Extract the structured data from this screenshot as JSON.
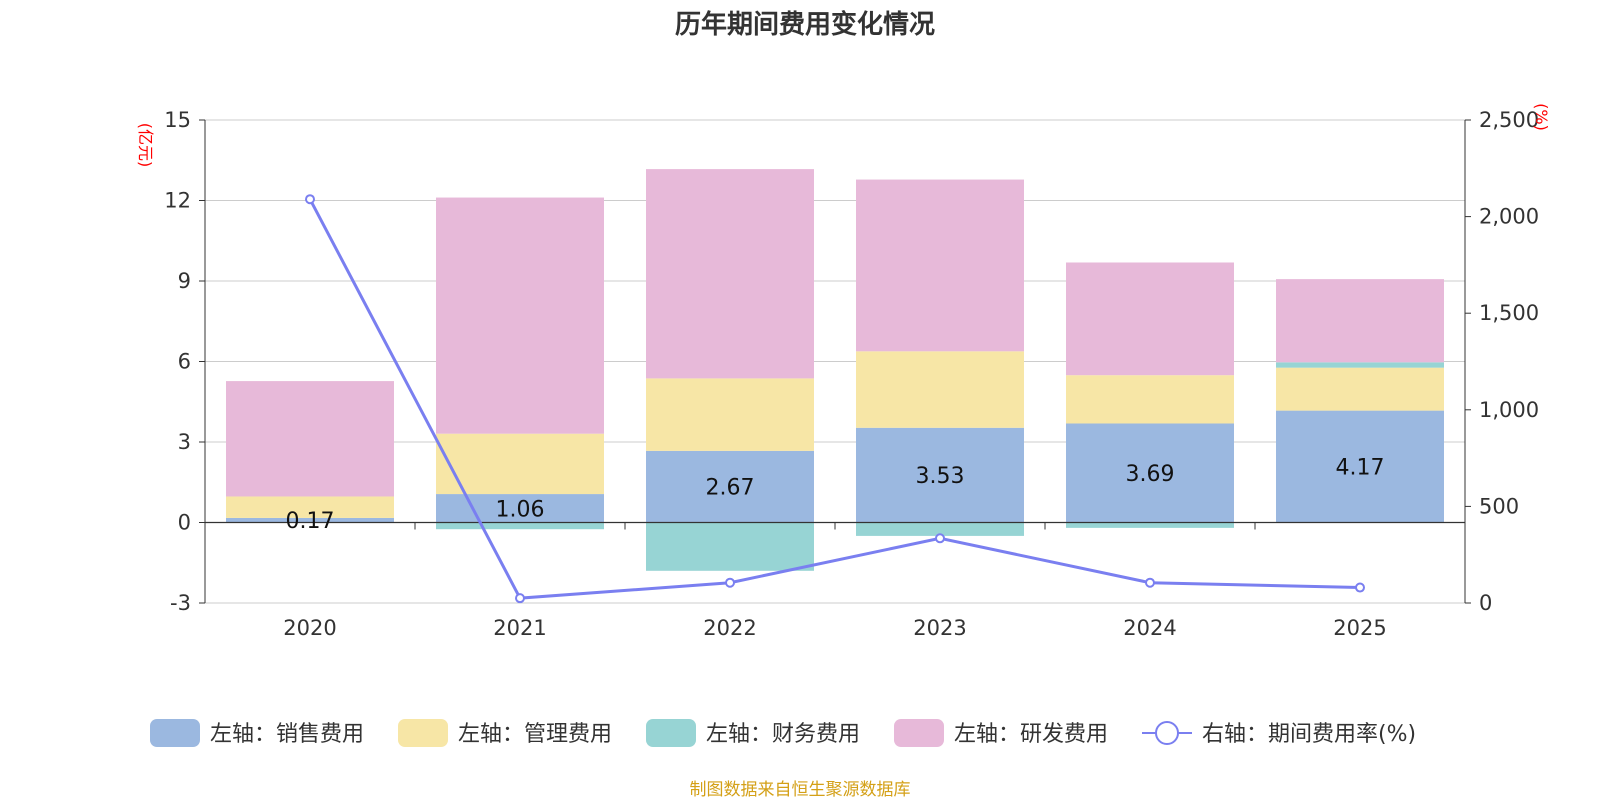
{
  "chart_data": {
    "type": "bar",
    "stacked": true,
    "title": "历年期间费用变化情况",
    "categories": [
      "2020",
      "2021",
      "2022",
      "2023",
      "2024",
      "2025"
    ],
    "left_axis": {
      "unit": "(亿元)",
      "ylim": [
        -3,
        15
      ],
      "ticks": [
        -3,
        0,
        3,
        6,
        9,
        12,
        15
      ]
    },
    "right_axis": {
      "unit": "(%)",
      "ylim": [
        0,
        2500
      ],
      "ticks": [
        0,
        500,
        1000,
        1500,
        2000,
        2500
      ],
      "tick_labels": [
        "0",
        "500",
        "1,000",
        "1,500",
        "2,000",
        "2,500"
      ]
    },
    "series": [
      {
        "name": "左轴：销售费用",
        "axis": "left",
        "type": "bar",
        "color": "#9bb8e0",
        "values": [
          0.17,
          1.06,
          2.67,
          3.53,
          3.69,
          4.17
        ],
        "labels": [
          "0.17",
          "1.06",
          "2.67",
          "3.53",
          "3.69",
          "4.17"
        ]
      },
      {
        "name": "左轴：管理费用",
        "axis": "left",
        "type": "bar",
        "color": "#f7e6a6",
        "values": [
          0.8,
          2.25,
          2.7,
          2.85,
          1.8,
          1.6
        ]
      },
      {
        "name": "左轴：财务费用",
        "axis": "left",
        "type": "bar",
        "color": "#97d4d4",
        "values": [
          0.0,
          -0.25,
          -1.8,
          -0.5,
          -0.2,
          0.2
        ]
      },
      {
        "name": "左轴：研发费用",
        "axis": "left",
        "type": "bar",
        "color": "#e7b9d9",
        "values": [
          4.3,
          8.8,
          7.8,
          6.4,
          4.2,
          3.1
        ]
      },
      {
        "name": "右轴：期间费用率(%)",
        "axis": "right",
        "type": "line",
        "color": "#7a7ff0",
        "values": [
          2090,
          25,
          105,
          335,
          105,
          80
        ]
      }
    ],
    "legend_position": "bottom"
  },
  "source_note": "制图数据来自恒生聚源数据库"
}
